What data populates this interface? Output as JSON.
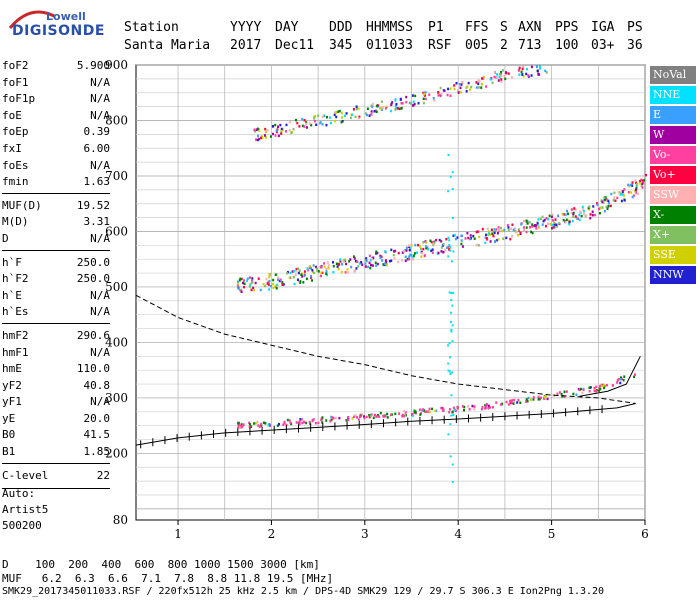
{
  "logo": {
    "line1": "Lowell",
    "line2": "DIGISONDE"
  },
  "header": {
    "row1": [
      "Station",
      "YYYY",
      "DAY",
      "DDD",
      "HHMMSS",
      "P1",
      "FFS",
      "S",
      "AXN",
      "PPS",
      "IGA",
      "PS"
    ],
    "row2": [
      "Santa Maria",
      "2017",
      "Dec11",
      "345",
      "011033",
      "RSF",
      "005",
      "2",
      "713",
      "100",
      "03+",
      "36"
    ]
  },
  "params": [
    {
      "label": "foF2",
      "value": "5.900"
    },
    {
      "label": "foF1",
      "value": "N/A"
    },
    {
      "label": "foF1p",
      "value": "N/A"
    },
    {
      "label": "foE",
      "value": "N/A"
    },
    {
      "label": "foEp",
      "value": "0.39"
    },
    {
      "label": "fxI",
      "value": "6.00"
    },
    {
      "label": "foEs",
      "value": "N/A"
    },
    {
      "label": "fmin",
      "value": "1.63"
    },
    {
      "label": "MUF(D)",
      "value": "19.52"
    },
    {
      "label": "M(D)",
      "value": "3.31"
    },
    {
      "label": "D",
      "value": "N/A"
    },
    {
      "label": "h`F",
      "value": "250.0"
    },
    {
      "label": "h`F2",
      "value": "250.0"
    },
    {
      "label": "h`E",
      "value": "N/A"
    },
    {
      "label": "h`Es",
      "value": "N/A"
    },
    {
      "label": "hmF2",
      "value": "290.6"
    },
    {
      "label": "hmF1",
      "value": "N/A"
    },
    {
      "label": "hmE",
      "value": "110.0"
    },
    {
      "label": "yF2",
      "value": "40.8"
    },
    {
      "label": "yF1",
      "value": "N/A"
    },
    {
      "label": "yE",
      "value": "20.0"
    },
    {
      "label": "B0",
      "value": "41.5"
    },
    {
      "label": "B1",
      "value": "1.85"
    },
    {
      "label": "C-level",
      "value": "22"
    }
  ],
  "auto": [
    "Auto:",
    "Artist5",
    "500200"
  ],
  "legend": [
    {
      "label": "NoVal",
      "color": "#808080"
    },
    {
      "label": "NNE",
      "color": "#00e0ff"
    },
    {
      "label": "E",
      "color": "#3aa0ff"
    },
    {
      "label": "W",
      "color": "#a000a0"
    },
    {
      "label": "Vo-",
      "color": "#ff40a0"
    },
    {
      "label": "Vo+",
      "color": "#ff0040"
    },
    {
      "label": "SSW",
      "color": "#ffb0b0"
    },
    {
      "label": "X-",
      "color": "#008000"
    },
    {
      "label": "X+",
      "color": "#80c060"
    },
    {
      "label": "SSE",
      "color": "#d0d000"
    },
    {
      "label": "NNW",
      "color": "#2020d0"
    }
  ],
  "footer": {
    "d_row": "D    100  200  400  600  800 1000 1500 3000 [km]",
    "muf_row": "MUF   6.2  6.3  6.6  7.1  7.8  8.8 11.8 19.5 [MHz]",
    "info": "SMK29_2017345011033.RSF / 220fx512h 25 kHz 2.5 km / DPS-4D SMK29 129 / 29.7 S 306.3 E Ion2Png 1.3.20"
  },
  "chart_data": {
    "type": "scatter",
    "title": "",
    "xlabel": "",
    "ylabel": "",
    "xlim": [
      0.55,
      6.0
    ],
    "ylim": [
      80,
      900
    ],
    "xticks": [
      1,
      2,
      3,
      4,
      5,
      6
    ],
    "yticks": [
      80,
      200,
      300,
      400,
      500,
      600,
      700,
      800,
      900
    ],
    "grid": true,
    "traces": [
      {
        "name": "",
        "values": [
          [
            1.63,
            253
          ],
          [
            2.0,
            256
          ],
          [
            2.5,
            262
          ],
          [
            3.0,
            268
          ],
          [
            3.5,
            275
          ],
          [
            4.0,
            282
          ],
          [
            4.5,
            292
          ],
          [
            5.0,
            305
          ],
          [
            5.5,
            320
          ],
          [
            5.9,
            345
          ]
        ]
      },
      {
        "name": "",
        "values": [
          [
            1.63,
            505
          ],
          [
            2.0,
            512
          ],
          [
            2.5,
            530
          ],
          [
            3.0,
            548
          ],
          [
            3.5,
            565
          ],
          [
            4.0,
            585
          ],
          [
            4.5,
            600
          ],
          [
            5.0,
            620
          ],
          [
            5.5,
            645
          ],
          [
            6.0,
            690
          ]
        ]
      },
      {
        "name": "",
        "values": [
          [
            1.8,
            775
          ],
          [
            2.2,
            790
          ],
          [
            2.6,
            805
          ],
          [
            3.0,
            820
          ],
          [
            3.4,
            835
          ],
          [
            3.8,
            852
          ],
          [
            4.2,
            870
          ],
          [
            4.6,
            888
          ],
          [
            5.0,
            900
          ]
        ]
      }
    ],
    "profile": {
      "name": "",
      "values": [
        [
          0.55,
          485
        ],
        [
          1.0,
          445
        ],
        [
          1.5,
          415
        ],
        [
          2.0,
          395
        ],
        [
          2.5,
          375
        ],
        [
          3.0,
          360
        ],
        [
          3.5,
          340
        ],
        [
          4.0,
          325
        ],
        [
          4.5,
          315
        ],
        [
          5.0,
          305
        ],
        [
          5.5,
          300
        ],
        [
          5.9,
          290
        ],
        [
          5.7,
          282
        ],
        [
          5.0,
          272
        ],
        [
          4.5,
          267
        ],
        [
          4.0,
          262
        ],
        [
          3.5,
          258
        ],
        [
          3.0,
          252
        ],
        [
          2.5,
          247
        ],
        [
          2.0,
          242
        ],
        [
          1.5,
          237
        ],
        [
          1.0,
          228
        ],
        [
          0.55,
          215
        ]
      ]
    },
    "rising_branch": {
      "name": "",
      "values": [
        [
          5.3,
          303
        ],
        [
          5.6,
          312
        ],
        [
          5.8,
          325
        ],
        [
          5.95,
          375
        ]
      ]
    }
  }
}
